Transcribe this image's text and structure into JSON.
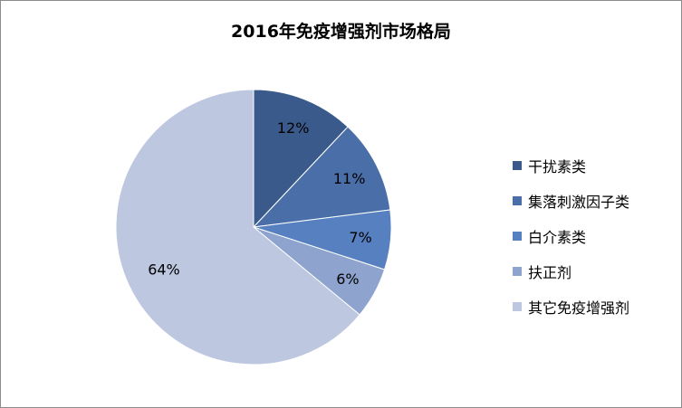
{
  "chart_data": {
    "type": "pie",
    "title": "2016年免疫增强剂市场格局",
    "slices": [
      {
        "label": "干扰素类",
        "value": 12,
        "value_label": "12%",
        "color": "#3a5a8c"
      },
      {
        "label": "集落刺激因子类",
        "value": 11,
        "value_label": "11%",
        "color": "#4a6fa8"
      },
      {
        "label": "白介素类",
        "value": 7,
        "value_label": "7%",
        "color": "#5680c0"
      },
      {
        "label": "扶正剂",
        "value": 6,
        "value_label": "6%",
        "color": "#8ea4cf"
      },
      {
        "label": "其它免疫增强剂",
        "value": 64,
        "value_label": "64%",
        "color": "#bdc7e0"
      }
    ],
    "legend_position": "right",
    "start_angle": "12 o'clock",
    "direction": "clockwise"
  }
}
